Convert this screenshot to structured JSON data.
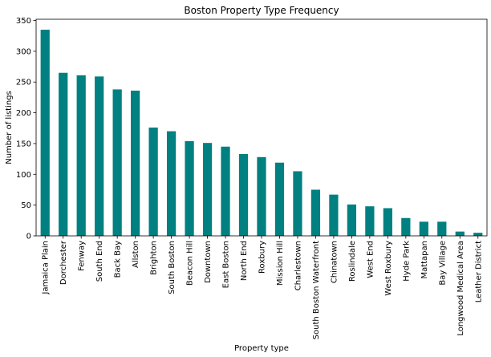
{
  "chart_data": {
    "type": "bar",
    "title": "Boston Property Type Frequency",
    "xlabel": "Property type",
    "ylabel": "Number of listings",
    "categories": [
      "Jamaica Plain",
      "Dorchester",
      "Fenway",
      "South End",
      "Back Bay",
      "Allston",
      "Brighton",
      "South Boston",
      "Beacon Hill",
      "Downtown",
      "East Boston",
      "North End",
      "Roxbury",
      "Mission Hill",
      "Charlestown",
      "South Boston Waterfront",
      "Chinatown",
      "Roslindale",
      "West End",
      "West Roxbury",
      "Hyde Park",
      "Mattapan",
      "Bay Village",
      "Longwood Medical Area",
      "Leather District"
    ],
    "values": [
      335,
      265,
      261,
      259,
      238,
      236,
      176,
      170,
      154,
      151,
      145,
      133,
      128,
      119,
      105,
      75,
      67,
      51,
      48,
      45,
      29,
      23,
      23,
      7,
      5
    ],
    "ylim": [
      0,
      352
    ],
    "yticks": [
      0,
      50,
      100,
      150,
      200,
      250,
      300,
      350
    ],
    "bar_color": "#008080",
    "grid": false,
    "legend": "none"
  }
}
